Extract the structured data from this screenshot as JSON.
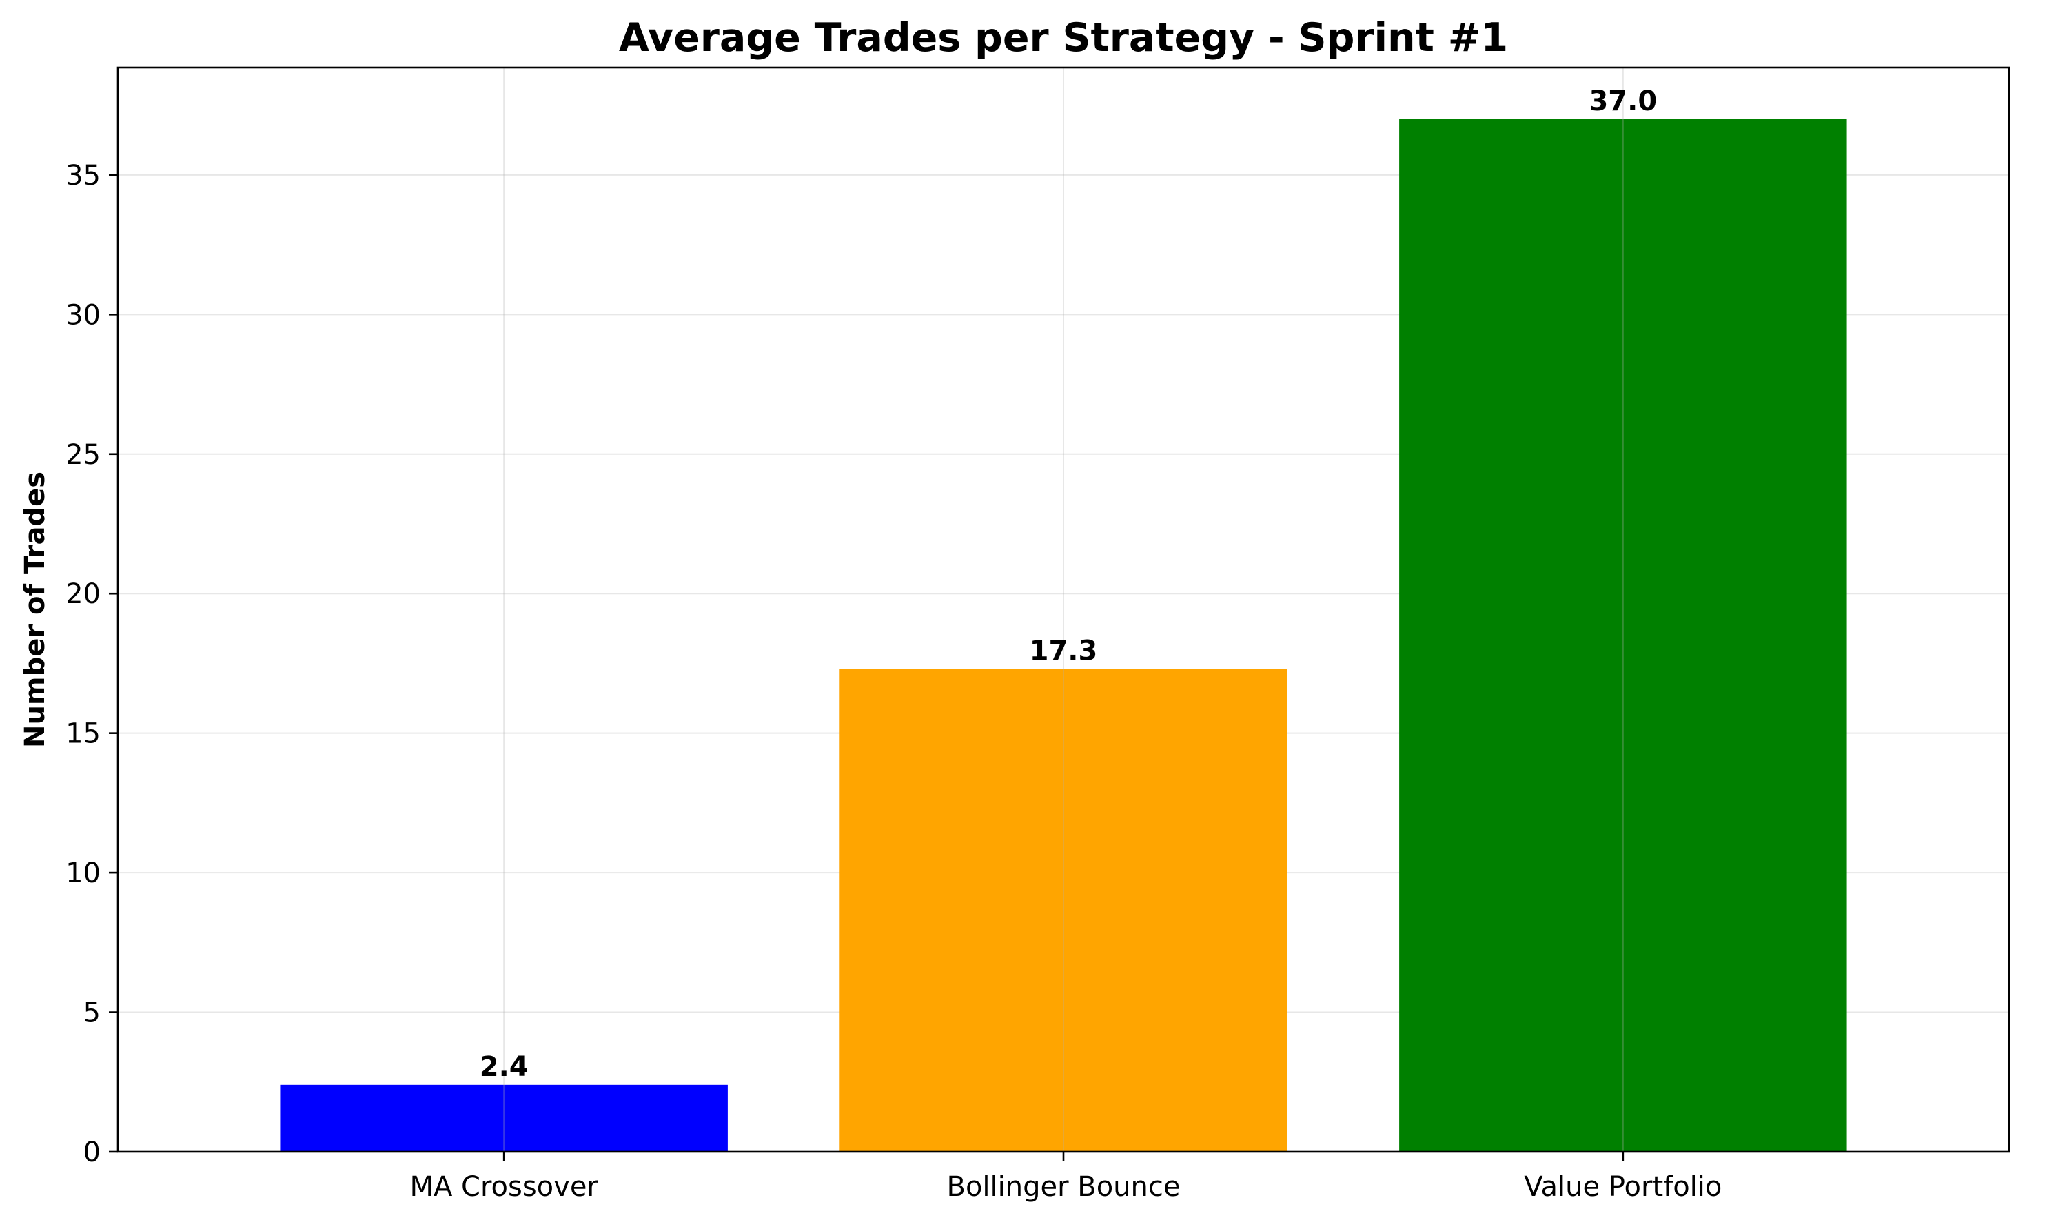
{
  "chart_data": {
    "type": "bar",
    "title": "Average Trades per Strategy - Sprint #1",
    "xlabel": "",
    "ylabel": "Number of Trades",
    "categories": [
      "MA Crossover",
      "Bollinger Bounce",
      "Value Portfolio"
    ],
    "values": [
      2.4,
      17.3,
      37.0
    ],
    "value_labels": [
      "2.4",
      "17.3",
      "37.0"
    ],
    "colors": [
      "#0000ff",
      "#ffa500",
      "#008000"
    ],
    "ylim": [
      0,
      38.85
    ],
    "yticks": [
      0,
      5,
      10,
      15,
      20,
      25,
      30,
      35
    ],
    "ytick_labels": [
      "0",
      "5",
      "10",
      "15",
      "20",
      "25",
      "30",
      "35"
    ],
    "grid": true
  }
}
